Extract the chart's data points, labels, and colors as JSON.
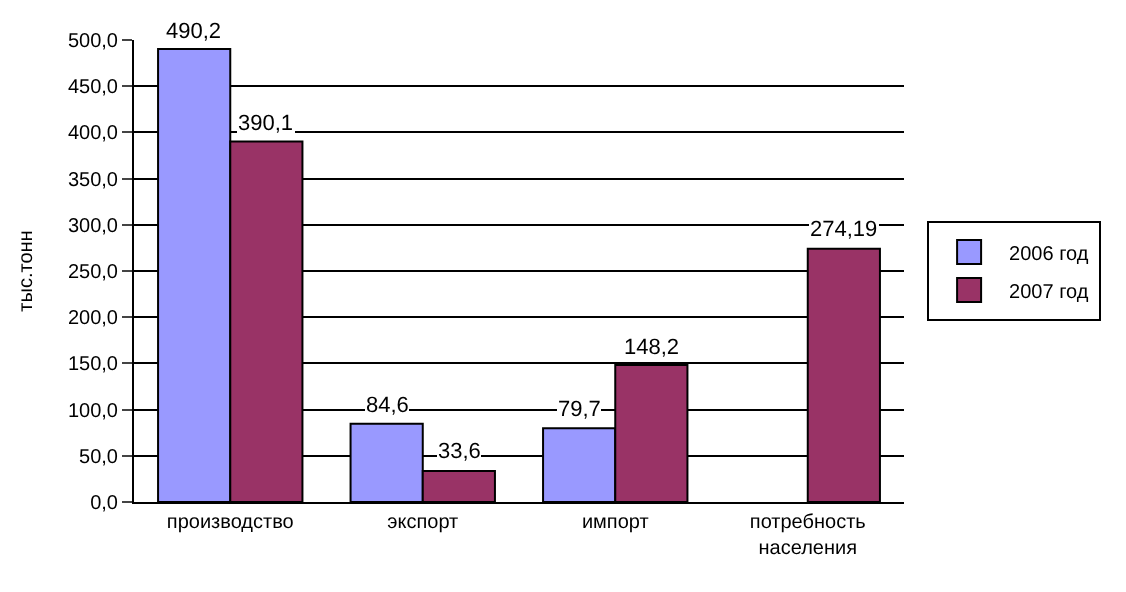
{
  "chart_data": {
    "type": "bar",
    "ylabel": "тыс.тонн",
    "categories": [
      "производство",
      "экспорт",
      "импорт",
      "потребность населения"
    ],
    "series": [
      {
        "name": "2006 год",
        "color": "#9999ff",
        "values": [
          490.2,
          84.6,
          79.7,
          null
        ],
        "value_labels": [
          "490,2",
          "84,6",
          "79,7",
          null
        ]
      },
      {
        "name": "2007 год",
        "color": "#993366",
        "values": [
          390.1,
          33.6,
          148.2,
          274.19
        ],
        "value_labels": [
          "390,1",
          "33,6",
          "148,2",
          "274,19"
        ]
      }
    ],
    "ylim": [
      0,
      500
    ],
    "yticks": [
      {
        "value": 0,
        "label": "0,0"
      },
      {
        "value": 50,
        "label": "50,0"
      },
      {
        "value": 100,
        "label": "100,0"
      },
      {
        "value": 150,
        "label": "150,0"
      },
      {
        "value": 200,
        "label": "200,0"
      },
      {
        "value": 250,
        "label": "250,0"
      },
      {
        "value": 300,
        "label": "300,0"
      },
      {
        "value": 350,
        "label": "350,0"
      },
      {
        "value": 400,
        "label": "400,0"
      },
      {
        "value": 450,
        "label": "450,0"
      },
      {
        "value": 500,
        "label": "500,0"
      }
    ],
    "grid": "y",
    "legend": "right"
  }
}
